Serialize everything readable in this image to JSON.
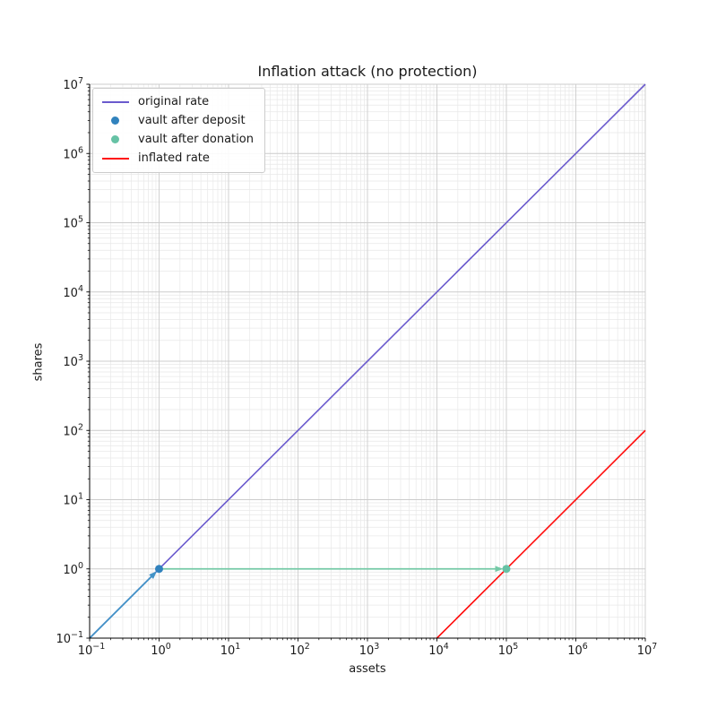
{
  "title": "Inflation attack (no protection)",
  "legend": {
    "items": [
      {
        "label": "original rate",
        "type": "line",
        "color": "#6a5acd"
      },
      {
        "label": "vault after deposit",
        "type": "dot",
        "color": "#3182bd"
      },
      {
        "label": "vault after donation",
        "type": "dot",
        "color": "#66c2a5"
      },
      {
        "label": "inflated rate",
        "type": "line",
        "color": "#ff0d0d"
      }
    ]
  },
  "chart_data": {
    "type": "line",
    "title": "Inflation attack (no protection)",
    "xlabel": "assets",
    "ylabel": "shares",
    "x_scale": "log",
    "y_scale": "log",
    "xlim": [
      0.1,
      10000000
    ],
    "ylim": [
      0.1,
      10000000
    ],
    "grid": true,
    "legend_position": "upper left",
    "x_tick_exponents": [
      -1,
      0,
      1,
      2,
      3,
      4,
      5,
      6,
      7
    ],
    "y_tick_exponents": [
      -1,
      0,
      1,
      2,
      3,
      4,
      5,
      6,
      7
    ],
    "series": [
      {
        "name": "original rate",
        "kind": "line",
        "color": "#6a5acd",
        "width": 1.6,
        "points": [
          [
            0.1,
            0.1
          ],
          [
            10000000,
            10000000
          ]
        ]
      },
      {
        "name": "inflated rate",
        "kind": "line",
        "color": "#ff0d0d",
        "width": 1.6,
        "points": [
          [
            10000,
            0.1
          ],
          [
            10000000,
            100
          ]
        ]
      },
      {
        "name": "vault after deposit",
        "kind": "scatter",
        "color": "#3182bd",
        "radius": 4.5,
        "points": [
          [
            1,
            1
          ]
        ]
      },
      {
        "name": "vault after donation",
        "kind": "scatter",
        "color": "#66c2a5",
        "radius": 4.5,
        "points": [
          [
            100000,
            1
          ]
        ]
      }
    ],
    "annotations": [
      {
        "kind": "arrow",
        "from": [
          0.1,
          0.1
        ],
        "to": [
          1,
          1
        ],
        "color": "#4393c7",
        "width": 1.8
      },
      {
        "kind": "arrow",
        "from": [
          1,
          1
        ],
        "to": [
          100000,
          1
        ],
        "color": "#74c9a6",
        "width": 1.8
      }
    ],
    "style": {
      "major_grid_color": "#cccccc",
      "minor_grid_color": "#e8e8e8",
      "spine_color": "#000000",
      "text_color": "#1a1a1a"
    }
  }
}
